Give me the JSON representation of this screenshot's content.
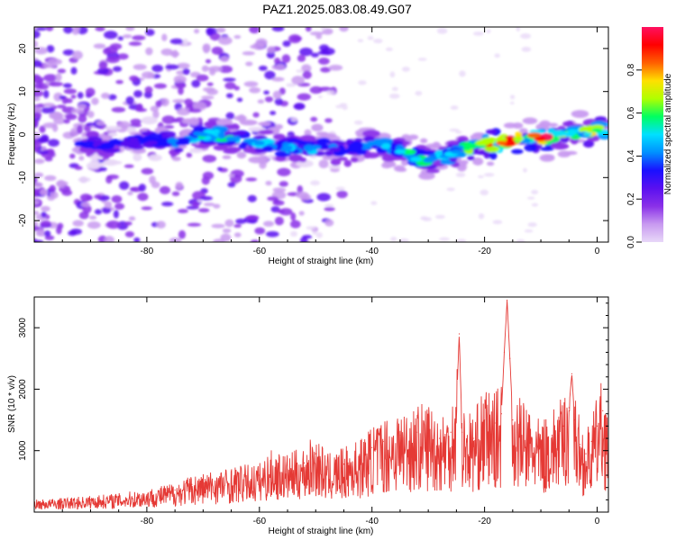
{
  "title": "PAZ1.2025.083.08.49.G07",
  "colors": {
    "snr_line": "#e53935",
    "heatmap_ramp": [
      "#e8d8f8",
      "#c89af0",
      "#8a30e8",
      "#5a10f0",
      "#1a10ff",
      "#0090ff",
      "#00e0ff",
      "#00ff60",
      "#b0ff00",
      "#ffe000",
      "#ff6000",
      "#ff0000",
      "#ff1060"
    ]
  },
  "chart_data": [
    {
      "type": "heatmap",
      "xlabel": "Height of straight line (km)",
      "ylabel": "Frequency (Hz)",
      "xlim": [
        -100,
        2
      ],
      "ylim": [
        -25,
        25
      ],
      "x_ticks": [
        -80,
        -60,
        -40,
        -20,
        0
      ],
      "y_ticks": [
        -20,
        -10,
        0,
        10,
        20
      ],
      "colorbar": {
        "label": "Normalized spectral amplitude",
        "range": [
          0,
          1
        ],
        "ticks": [
          0.0,
          0.2,
          0.4,
          0.6,
          0.8
        ]
      },
      "ridge": [
        {
          "x": -88,
          "y": -3,
          "amp": 0.3
        },
        {
          "x": -80,
          "y": -1,
          "amp": 0.3
        },
        {
          "x": -74,
          "y": -2,
          "amp": 0.35
        },
        {
          "x": -70,
          "y": 0,
          "amp": 0.45
        },
        {
          "x": -65,
          "y": -1,
          "amp": 0.45
        },
        {
          "x": -60,
          "y": -2,
          "amp": 0.4
        },
        {
          "x": -55,
          "y": -3,
          "amp": 0.45
        },
        {
          "x": -50,
          "y": -3,
          "amp": 0.4
        },
        {
          "x": -45,
          "y": -4,
          "amp": 0.35
        },
        {
          "x": -40,
          "y": -2,
          "amp": 0.45
        },
        {
          "x": -35,
          "y": -4,
          "amp": 0.5
        },
        {
          "x": -30,
          "y": -6,
          "amp": 0.45
        },
        {
          "x": -25,
          "y": -4,
          "amp": 0.45
        },
        {
          "x": -20,
          "y": -2,
          "amp": 0.7
        },
        {
          "x": -17,
          "y": -2,
          "amp": 0.85
        },
        {
          "x": -14,
          "y": -1,
          "amp": 0.7
        },
        {
          "x": -10,
          "y": -1,
          "amp": 0.9
        },
        {
          "x": -5,
          "y": 0,
          "amp": 0.5
        },
        {
          "x": 0,
          "y": 1,
          "amp": 0.6
        }
      ]
    },
    {
      "type": "line",
      "xlabel": "Height of straight line (km)",
      "ylabel": "SNR (10 * v/v)",
      "xlim": [
        -100,
        2
      ],
      "ylim": [
        0,
        3500
      ],
      "x_ticks": [
        -80,
        -60,
        -40,
        -20,
        0
      ],
      "y_ticks": [
        1000,
        2000,
        3000
      ],
      "series": [
        {
          "x": [
            -100,
            -95,
            -90,
            -85,
            -80,
            -75,
            -72,
            -70,
            -65,
            -60,
            -58,
            -55,
            -52,
            -50,
            -48,
            -45,
            -42,
            -40,
            -38,
            -35,
            -32,
            -30,
            -28,
            -26,
            -25,
            -24.5,
            -24,
            -22,
            -20,
            -18,
            -17,
            -16.5,
            -16,
            -15.5,
            -15,
            -12,
            -10,
            -8,
            -6,
            -5,
            -4.5,
            -4,
            -3,
            -2,
            -1,
            0,
            1,
            2
          ],
          "y": [
            150,
            170,
            200,
            230,
            280,
            360,
            450,
            480,
            550,
            600,
            750,
            700,
            800,
            950,
            700,
            780,
            900,
            1050,
            1150,
            1250,
            1300,
            1350,
            1200,
            1300,
            1700,
            2900,
            1300,
            1200,
            1500,
            1450,
            1600,
            2600,
            3450,
            2500,
            1500,
            1250,
            1100,
            1250,
            1400,
            1700,
            2250,
            1500,
            1100,
            950,
            1150,
            1400,
            1650,
            1100
          ]
        }
      ]
    }
  ]
}
